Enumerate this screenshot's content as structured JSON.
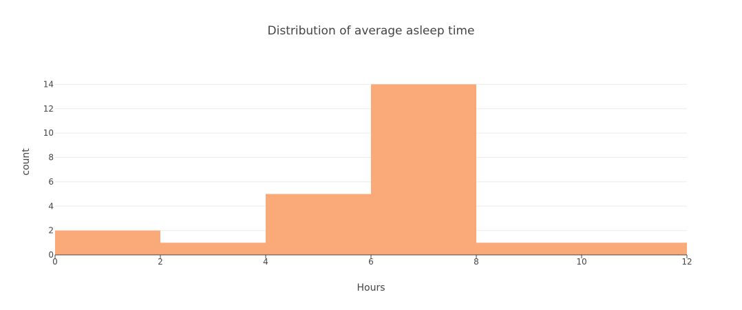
{
  "chart_data": {
    "type": "bar",
    "title": "Distribution of average asleep time",
    "xlabel": "Hours",
    "ylabel": "count",
    "bins": [
      {
        "start": 0,
        "end": 2,
        "count": 2
      },
      {
        "start": 2,
        "end": 4,
        "count": 1
      },
      {
        "start": 4,
        "end": 6,
        "count": 5
      },
      {
        "start": 6,
        "end": 8,
        "count": 14
      },
      {
        "start": 8,
        "end": 10,
        "count": 1
      },
      {
        "start": 10,
        "end": 12,
        "count": 1
      }
    ],
    "xlim": [
      0,
      12
    ],
    "ylim": [
      0,
      14.7
    ],
    "x_ticks": [
      0,
      2,
      4,
      6,
      8,
      10,
      12
    ],
    "y_ticks": [
      0,
      2,
      4,
      6,
      8,
      10,
      12,
      14
    ],
    "grid": true,
    "bar_color": "#F9AA78",
    "grid_color": "#EBEBEB",
    "axis_line_color": "#444444"
  }
}
